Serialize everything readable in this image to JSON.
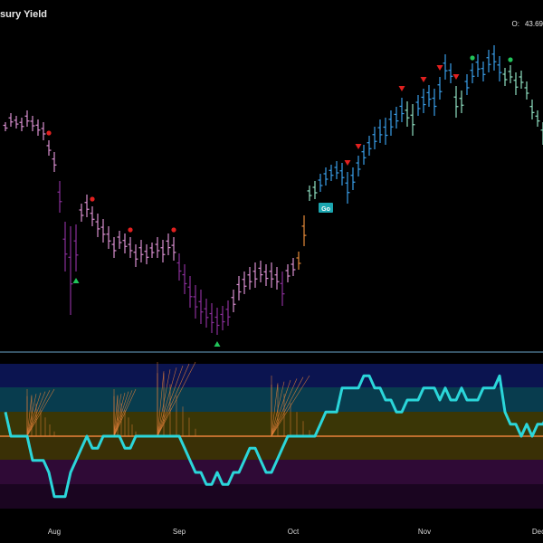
{
  "header": {
    "title": "sury Yield",
    "ohlc_label": "O:",
    "ohlc_value": "43.69"
  },
  "colors": {
    "background": "#000000",
    "divider": "#6aa5c8",
    "oscillator_line": "#2bd6da",
    "zero_line": "#e9823a",
    "band_top": "#0b1450",
    "band_upper": "#083c4e",
    "band_mid_upper": "#3a3606",
    "band_mid_lower": "#3a3006",
    "band_lower": "#2f0a36",
    "band_bottom": "#1a0520",
    "bull_strong": "#3a9ee8",
    "bull_weak": "#8fe0c2",
    "bear_weak": "#d98fd0",
    "bear_strong": "#8a2f9a",
    "neutral": "#e58a3a",
    "signal_red": "#e2201f",
    "signal_green": "#21c45a"
  },
  "chart_data": [
    {
      "type": "ohlc",
      "title": "",
      "x_ticks": [
        "Aug",
        "Sep",
        "Oct",
        "Nov",
        "Dec"
      ],
      "bars": [
        {
          "h": 135,
          "l": 145,
          "c": "bear_weak"
        },
        {
          "h": 125,
          "l": 140,
          "c": "bear_weak"
        },
        {
          "h": 128,
          "l": 142,
          "c": "bear_weak"
        },
        {
          "h": 130,
          "l": 145,
          "c": "bear_weak"
        },
        {
          "h": 122,
          "l": 140,
          "c": "bear_weak"
        },
        {
          "h": 128,
          "l": 145,
          "c": "bear_weak"
        },
        {
          "h": 132,
          "l": 150,
          "c": "bear_weak"
        },
        {
          "h": 135,
          "l": 155,
          "c": "bear_weak"
        },
        {
          "h": 155,
          "l": 172,
          "c": "bear_weak"
        },
        {
          "h": 168,
          "l": 190,
          "c": "bear_weak"
        },
        {
          "h": 200,
          "l": 235,
          "c": "bear_strong"
        },
        {
          "h": 245,
          "l": 300,
          "c": "bear_strong"
        },
        {
          "h": 250,
          "l": 348,
          "c": "bear_strong"
        },
        {
          "h": 248,
          "l": 300,
          "c": "bear_strong"
        },
        {
          "h": 225,
          "l": 245,
          "c": "bear_weak"
        },
        {
          "h": 215,
          "l": 240,
          "c": "bear_weak"
        },
        {
          "h": 228,
          "l": 250,
          "c": "bear_weak"
        },
        {
          "h": 236,
          "l": 262,
          "c": "bear_weak"
        },
        {
          "h": 242,
          "l": 268,
          "c": "bear_weak"
        },
        {
          "h": 250,
          "l": 275,
          "c": "bear_weak"
        },
        {
          "h": 262,
          "l": 285,
          "c": "bear_weak"
        },
        {
          "h": 255,
          "l": 275,
          "c": "bear_weak"
        },
        {
          "h": 258,
          "l": 280,
          "c": "bear_weak"
        },
        {
          "h": 262,
          "l": 285,
          "c": "bear_weak"
        },
        {
          "h": 270,
          "l": 295,
          "c": "bear_weak"
        },
        {
          "h": 265,
          "l": 290,
          "c": "bear_weak"
        },
        {
          "h": 270,
          "l": 292,
          "c": "bear_weak"
        },
        {
          "h": 268,
          "l": 285,
          "c": "bear_weak"
        },
        {
          "h": 262,
          "l": 285,
          "c": "bear_weak"
        },
        {
          "h": 265,
          "l": 290,
          "c": "bear_weak"
        },
        {
          "h": 258,
          "l": 282,
          "c": "bear_weak"
        },
        {
          "h": 262,
          "l": 288,
          "c": "bear_weak"
        },
        {
          "h": 280,
          "l": 310,
          "c": "bear_strong"
        },
        {
          "h": 292,
          "l": 325,
          "c": "bear_strong"
        },
        {
          "h": 305,
          "l": 340,
          "c": "bear_strong"
        },
        {
          "h": 315,
          "l": 352,
          "c": "bear_strong"
        },
        {
          "h": 320,
          "l": 358,
          "c": "bear_strong"
        },
        {
          "h": 330,
          "l": 362,
          "c": "bear_strong"
        },
        {
          "h": 335,
          "l": 368,
          "c": "bear_strong"
        },
        {
          "h": 340,
          "l": 370,
          "c": "bear_strong"
        },
        {
          "h": 338,
          "l": 365,
          "c": "bear_strong"
        },
        {
          "h": 332,
          "l": 360,
          "c": "bear_strong"
        },
        {
          "h": 320,
          "l": 345,
          "c": "bear_weak"
        },
        {
          "h": 305,
          "l": 332,
          "c": "bear_weak"
        },
        {
          "h": 300,
          "l": 325,
          "c": "bear_weak"
        },
        {
          "h": 295,
          "l": 320,
          "c": "bear_weak"
        },
        {
          "h": 290,
          "l": 318,
          "c": "bear_weak"
        },
        {
          "h": 288,
          "l": 312,
          "c": "bear_weak"
        },
        {
          "h": 292,
          "l": 316,
          "c": "bear_weak"
        },
        {
          "h": 290,
          "l": 318,
          "c": "bear_weak"
        },
        {
          "h": 295,
          "l": 320,
          "c": "bear_weak"
        },
        {
          "h": 300,
          "l": 338,
          "c": "bear_strong"
        },
        {
          "h": 292,
          "l": 312,
          "c": "bear_weak"
        },
        {
          "h": 285,
          "l": 305,
          "c": "bear_weak"
        },
        {
          "h": 278,
          "l": 298,
          "c": "neutral"
        },
        {
          "h": 238,
          "l": 272,
          "c": "neutral"
        },
        {
          "h": 205,
          "l": 222,
          "c": "bull_weak"
        },
        {
          "h": 200,
          "l": 220,
          "c": "bull_weak"
        },
        {
          "h": 192,
          "l": 212,
          "c": "bull_strong"
        },
        {
          "h": 185,
          "l": 205,
          "c": "bull_strong"
        },
        {
          "h": 182,
          "l": 200,
          "c": "bull_strong"
        },
        {
          "h": 178,
          "l": 198,
          "c": "bull_strong"
        },
        {
          "h": 180,
          "l": 205,
          "c": "bull_strong"
        },
        {
          "h": 190,
          "l": 225,
          "c": "bull_strong"
        },
        {
          "h": 185,
          "l": 210,
          "c": "bull_strong"
        },
        {
          "h": 172,
          "l": 195,
          "c": "bull_strong"
        },
        {
          "h": 160,
          "l": 182,
          "c": "bull_strong"
        },
        {
          "h": 150,
          "l": 172,
          "c": "bull_strong"
        },
        {
          "h": 140,
          "l": 165,
          "c": "bull_strong"
        },
        {
          "h": 132,
          "l": 158,
          "c": "bull_strong"
        },
        {
          "h": 130,
          "l": 160,
          "c": "bull_strong"
        },
        {
          "h": 122,
          "l": 150,
          "c": "bull_strong"
        },
        {
          "h": 118,
          "l": 142,
          "c": "bull_strong"
        },
        {
          "h": 108,
          "l": 135,
          "c": "bull_strong"
        },
        {
          "h": 112,
          "l": 140,
          "c": "bull_weak"
        },
        {
          "h": 115,
          "l": 150,
          "c": "bull_weak"
        },
        {
          "h": 105,
          "l": 128,
          "c": "bull_strong"
        },
        {
          "h": 98,
          "l": 125,
          "c": "bull_strong"
        },
        {
          "h": 94,
          "l": 118,
          "c": "bull_strong"
        },
        {
          "h": 98,
          "l": 128,
          "c": "bull_strong"
        },
        {
          "h": 85,
          "l": 110,
          "c": "bull_strong"
        },
        {
          "h": 60,
          "l": 88,
          "c": "bull_strong"
        },
        {
          "h": 70,
          "l": 92,
          "c": "bull_strong"
        },
        {
          "h": 95,
          "l": 130,
          "c": "bull_weak"
        },
        {
          "h": 100,
          "l": 125,
          "c": "bull_weak"
        },
        {
          "h": 82,
          "l": 105,
          "c": "bull_strong"
        },
        {
          "h": 70,
          "l": 92,
          "c": "bull_strong"
        },
        {
          "h": 60,
          "l": 85,
          "c": "bull_strong"
        },
        {
          "h": 68,
          "l": 90,
          "c": "bull_strong"
        },
        {
          "h": 55,
          "l": 80,
          "c": "bull_strong"
        },
        {
          "h": 50,
          "l": 78,
          "c": "bull_strong"
        },
        {
          "h": 62,
          "l": 90,
          "c": "bull_strong"
        },
        {
          "h": 75,
          "l": 95,
          "c": "bull_weak"
        },
        {
          "h": 72,
          "l": 92,
          "c": "bull_weak"
        },
        {
          "h": 80,
          "l": 105,
          "c": "bull_weak"
        },
        {
          "h": 78,
          "l": 98,
          "c": "bull_weak"
        },
        {
          "h": 90,
          "l": 110,
          "c": "bull_weak"
        },
        {
          "h": 110,
          "l": 132,
          "c": "bull_weak"
        },
        {
          "h": 122,
          "l": 140,
          "c": "bull_weak"
        },
        {
          "h": 135,
          "l": 160,
          "c": "bull_weak"
        },
        {
          "h": 140,
          "l": 162,
          "c": "bull_weak"
        }
      ],
      "markers": [
        {
          "bar": 8,
          "kind": "dot_red"
        },
        {
          "bar": 13,
          "kind": "tri_up_green"
        },
        {
          "bar": 16,
          "kind": "dot_red"
        },
        {
          "bar": 23,
          "kind": "dot_red"
        },
        {
          "bar": 31,
          "kind": "dot_red"
        },
        {
          "bar": 39,
          "kind": "tri_up_green"
        },
        {
          "bar": 63,
          "kind": "tri_down_red"
        },
        {
          "bar": 65,
          "kind": "tri_down_red"
        },
        {
          "bar": 73,
          "kind": "tri_down_red"
        },
        {
          "bar": 77,
          "kind": "tri_down_red"
        },
        {
          "bar": 80,
          "kind": "tri_down_red"
        },
        {
          "bar": 83,
          "kind": "tri_down_red"
        },
        {
          "bar": 86,
          "kind": "dot_green"
        },
        {
          "bar": 93,
          "kind": "dot_green"
        }
      ],
      "go_label": {
        "bar": 58,
        "text": "Go"
      }
    },
    {
      "type": "line",
      "series": [
        {
          "values": [
            2,
            0,
            0,
            0,
            0,
            -2,
            -2,
            -2,
            -3,
            -5,
            -5,
            -5,
            -3,
            -2,
            -1,
            0,
            -1,
            -1,
            0,
            0,
            0,
            0,
            -1,
            -1,
            0,
            0,
            0,
            0,
            0,
            0,
            0,
            0,
            0,
            -1,
            -2,
            -3,
            -3,
            -4,
            -4,
            -3,
            -4,
            -4,
            -3,
            -3,
            -2,
            -1,
            -1,
            -2,
            -3,
            -3,
            -2,
            -1,
            0,
            0,
            0,
            0,
            0,
            0,
            1,
            2,
            2,
            2,
            4,
            4,
            4,
            4,
            5,
            5,
            4,
            4,
            3,
            3,
            2,
            2,
            3,
            3,
            3,
            4,
            4,
            4,
            3,
            4,
            3,
            3,
            4,
            3,
            3,
            3,
            4,
            4,
            4,
            5,
            2,
            1,
            1,
            0,
            1,
            0,
            1,
            1,
            2,
            0,
            0,
            0,
            -1,
            -2,
            -3
          ]
        }
      ],
      "ylim": [
        -6,
        6
      ]
    }
  ]
}
